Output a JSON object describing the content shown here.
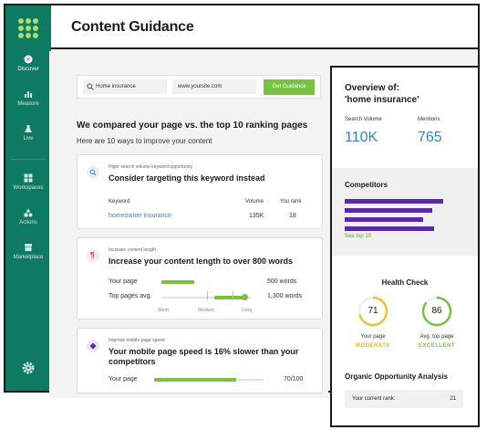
{
  "header": {
    "title": "Content Guidance"
  },
  "sidebar": {
    "items": [
      {
        "label": "Discover",
        "icon": "compass-icon"
      },
      {
        "label": "Measure",
        "icon": "chart-icon"
      },
      {
        "label": "Live",
        "icon": "flask-icon"
      },
      {
        "label": "Workspaces",
        "icon": "grid-icon"
      },
      {
        "label": "Actions",
        "icon": "shapes-icon"
      },
      {
        "label": "Marketplace",
        "icon": "store-icon"
      }
    ]
  },
  "search": {
    "keyword_value": "Home insurance",
    "site_value": "www.yoursite.com",
    "button": "Get Guidance"
  },
  "intro": {
    "title": "We compared your page vs. the top 10 ranking pages",
    "subtitle": "Here are 10 ways to improve your content"
  },
  "cards": {
    "keyword": {
      "kicker": "Higer search volume keyword opportunity",
      "title": "Consider targeting this keyword instead",
      "col_keyword": "Keyword",
      "col_volume": "Volume",
      "col_rank": "You rank",
      "row_keyword": "homeowner insurance",
      "row_volume": "135K",
      "row_rank": "18"
    },
    "length": {
      "kicker": "Increase content length",
      "title": "Increase your content length to over 800 words",
      "your_page_label": "Your page",
      "your_page_value": "500 words",
      "top_pages_label": "Top pages avg.",
      "top_pages_value": "1,300 words",
      "scale_short": "Short",
      "scale_medium": "Medium",
      "scale_long": "Long"
    },
    "speed": {
      "kicker": "Improve mobile page speed",
      "title": "Your mobile page speed is 16% slower than your competitors",
      "your_page_label": "Your page",
      "your_page_value": "70/100"
    }
  },
  "overview": {
    "title_line1": "Overview of:",
    "title_line2": "'home insurance'",
    "search_volume_label": "Search Volume",
    "search_volume_value": "110K",
    "mentions_label": "Mentions",
    "mentions_value": "765",
    "competitors_title": "Competitors",
    "competitors_link": "See top 10",
    "health_title": "Health Check",
    "your_page_score": "71",
    "your_page_label": "Your page",
    "your_page_status": "MODERATE",
    "top_page_score": "86",
    "top_page_label": "Avg. top page",
    "top_page_status": "EXCELLENT",
    "opportunity_title": "Organic Opportunity Analysis",
    "rank_label": "Your current rank:",
    "rank_value": "21"
  },
  "colors": {
    "sidebar": "#0f7a63",
    "accent_green": "#7bc043",
    "accent_blue": "#3b82c4",
    "competitor_purple": "#5b2aa5",
    "moderate_yellow": "#e8c23a"
  }
}
